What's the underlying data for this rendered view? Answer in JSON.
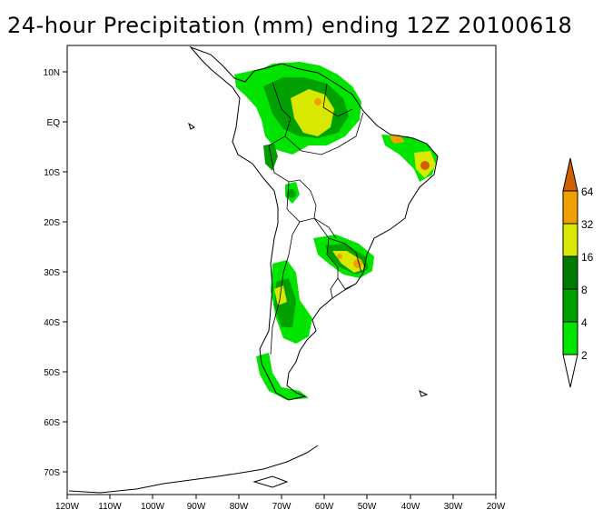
{
  "title": "24-hour Precipitation (mm) ending 12Z 20100618",
  "map": {
    "lon_range": [
      -120,
      -20
    ],
    "lat_range": [
      -75,
      15
    ],
    "x_ticks": [
      "120W",
      "110W",
      "100W",
      "90W",
      "80W",
      "70W",
      "60W",
      "50W",
      "40W",
      "30W",
      "20W"
    ],
    "y_ticks": [
      "10N",
      "EQ",
      "10S",
      "20S",
      "30S",
      "40S",
      "50S",
      "60S",
      "70S"
    ]
  },
  "colorbar": {
    "labels": [
      "2",
      "4",
      "8",
      "16",
      "32",
      "64"
    ],
    "colors": [
      "#ffffff",
      "#00e400",
      "#00a000",
      "#007a00",
      "#d8e800",
      "#f0a000",
      "#d06000",
      "#ffffff"
    ]
  }
}
